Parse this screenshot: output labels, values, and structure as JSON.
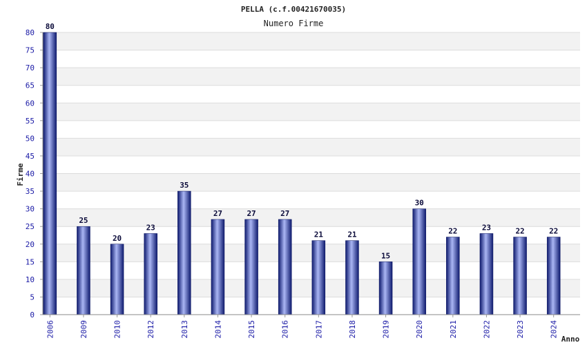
{
  "chart_data": {
    "type": "bar",
    "title": "PELLA (c.f.00421670035)",
    "subtitle": "Numero Firme",
    "xlabel": "Anno",
    "ylabel": "Firme",
    "categories": [
      "2006",
      "2009",
      "2010",
      "2012",
      "2013",
      "2014",
      "2015",
      "2016",
      "2017",
      "2018",
      "2019",
      "2020",
      "2021",
      "2022",
      "2023",
      "2024"
    ],
    "values": [
      80,
      25,
      20,
      23,
      35,
      27,
      27,
      27,
      21,
      21,
      15,
      30,
      22,
      23,
      22,
      22
    ],
    "ylim": [
      0,
      80
    ],
    "ytick_step": 5,
    "grid": true,
    "bar_color": "#1e2a8c",
    "bar_highlight": "#b8c4ff",
    "band_color": "#f2f2f2",
    "tick_color": "#1a1aa6"
  }
}
